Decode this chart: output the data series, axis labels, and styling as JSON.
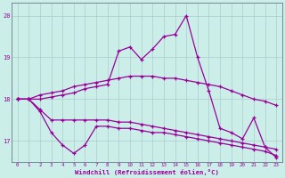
{
  "xlabel": "Windchill (Refroidissement éolien,°C)",
  "background_color": "#cceee8",
  "line_color": "#990099",
  "grid_color": "#aacccc",
  "x": [
    0,
    1,
    2,
    3,
    4,
    5,
    6,
    7,
    8,
    9,
    10,
    11,
    12,
    13,
    14,
    15,
    16,
    17,
    18,
    19,
    20,
    21,
    22,
    23
  ],
  "line1": [
    18.0,
    18.0,
    18.1,
    18.15,
    18.2,
    18.3,
    18.35,
    18.4,
    18.45,
    18.5,
    18.55,
    18.55,
    18.55,
    18.5,
    18.5,
    18.45,
    18.4,
    18.35,
    18.3,
    18.2,
    18.1,
    18.0,
    17.95,
    17.85
  ],
  "line2": [
    18.0,
    18.0,
    17.7,
    17.2,
    16.9,
    16.7,
    16.9,
    17.35,
    17.35,
    17.3,
    17.3,
    17.25,
    17.2,
    17.2,
    17.15,
    17.1,
    17.05,
    17.0,
    16.95,
    16.9,
    16.85,
    16.8,
    16.75,
    16.65
  ],
  "line3": [
    18.0,
    18.0,
    17.75,
    17.5,
    17.5,
    17.5,
    17.5,
    17.5,
    17.5,
    17.45,
    17.45,
    17.4,
    17.35,
    17.3,
    17.25,
    17.2,
    17.15,
    17.1,
    17.05,
    17.0,
    16.95,
    16.9,
    16.85,
    16.8
  ],
  "line4": [
    18.0,
    18.0,
    18.0,
    18.05,
    18.1,
    18.15,
    18.25,
    18.3,
    18.35,
    19.15,
    19.25,
    18.95,
    19.2,
    19.5,
    19.55,
    20.0,
    19.0,
    18.2,
    17.3,
    17.2,
    17.05,
    17.55,
    16.85,
    16.6
  ],
  "ylim": [
    16.5,
    20.3
  ],
  "yticks": [
    17,
    18,
    19,
    20
  ],
  "xticks": [
    0,
    1,
    2,
    3,
    4,
    5,
    6,
    7,
    8,
    9,
    10,
    11,
    12,
    13,
    14,
    15,
    16,
    17,
    18,
    19,
    20,
    21,
    22,
    23
  ]
}
